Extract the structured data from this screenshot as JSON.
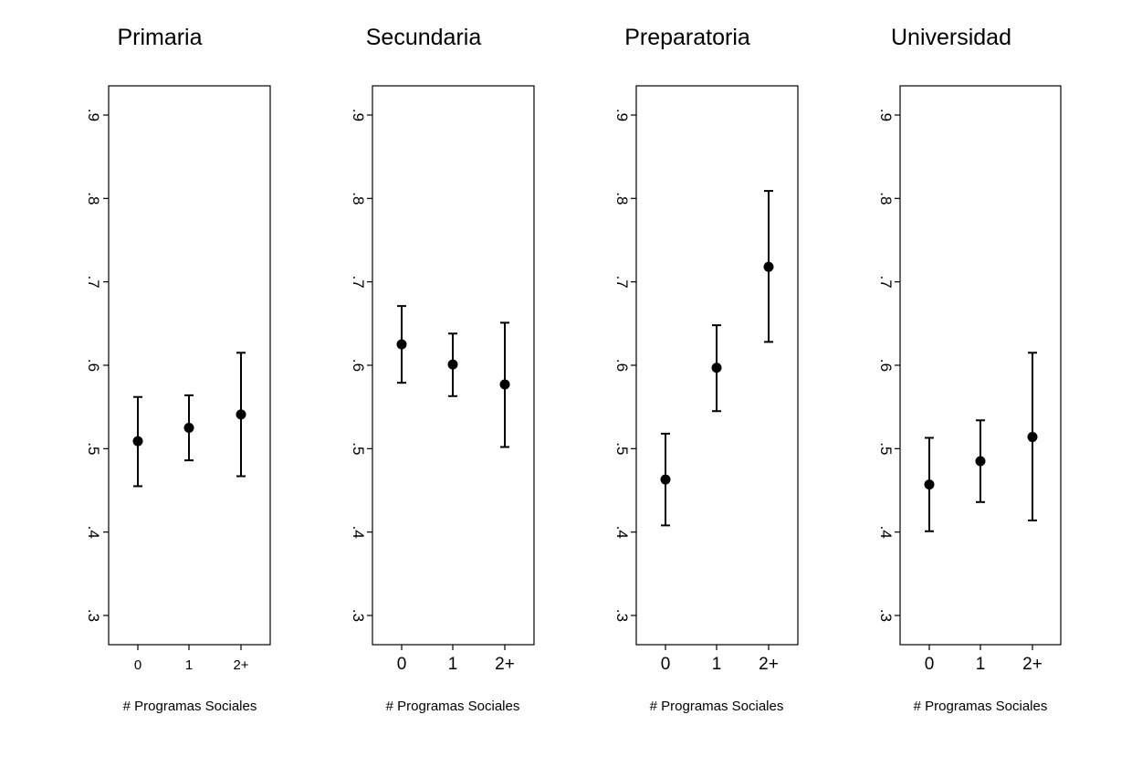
{
  "chart_data": [
    {
      "type": "scatter",
      "title": "Primaria",
      "xlabel": "# Programas Sociales",
      "ylabel": "",
      "categories": [
        "0",
        "1",
        "2+"
      ],
      "values": [
        0.509,
        0.525,
        0.541
      ],
      "ci_low": [
        0.455,
        0.486,
        0.467
      ],
      "ci_high": [
        0.562,
        0.564,
        0.615
      ],
      "ylim": [
        0.265,
        0.935
      ],
      "yticks": [
        0.3,
        0.4,
        0.5,
        0.6,
        0.7,
        0.8,
        0.9
      ],
      "ytick_labels": [
        ".3",
        ".4",
        ".5",
        ".6",
        ".7",
        ".8",
        ".9"
      ]
    },
    {
      "type": "scatter",
      "title": "Secundaria",
      "xlabel": "# Programas Sociales",
      "ylabel": "",
      "categories": [
        "0",
        "1",
        "2+"
      ],
      "values": [
        0.625,
        0.601,
        0.577
      ],
      "ci_low": [
        0.579,
        0.563,
        0.502
      ],
      "ci_high": [
        0.671,
        0.638,
        0.651
      ],
      "ylim": [
        0.265,
        0.935
      ],
      "yticks": [
        0.3,
        0.4,
        0.5,
        0.6,
        0.7,
        0.8,
        0.9
      ],
      "ytick_labels": [
        ".3",
        ".4",
        ".5",
        ".6",
        ".7",
        ".8",
        ".9"
      ]
    },
    {
      "type": "scatter",
      "title": "Preparatoria",
      "xlabel": "# Programas Sociales",
      "ylabel": "",
      "categories": [
        "0",
        "1",
        "2+"
      ],
      "values": [
        0.463,
        0.597,
        0.718
      ],
      "ci_low": [
        0.408,
        0.545,
        0.628
      ],
      "ci_high": [
        0.518,
        0.648,
        0.809
      ],
      "ylim": [
        0.265,
        0.935
      ],
      "yticks": [
        0.3,
        0.4,
        0.5,
        0.6,
        0.7,
        0.8,
        0.9
      ],
      "ytick_labels": [
        ".3",
        ".4",
        ".5",
        ".6",
        ".7",
        ".8",
        ".9"
      ]
    },
    {
      "type": "scatter",
      "title": "Universidad",
      "xlabel": "# Programas Sociales",
      "ylabel": "",
      "categories": [
        "0",
        "1",
        "2+"
      ],
      "values": [
        0.457,
        0.485,
        0.514
      ],
      "ci_low": [
        0.401,
        0.436,
        0.414
      ],
      "ci_high": [
        0.513,
        0.534,
        0.615
      ],
      "ylim": [
        0.265,
        0.935
      ],
      "yticks": [
        0.3,
        0.4,
        0.5,
        0.6,
        0.7,
        0.8,
        0.9
      ],
      "ytick_labels": [
        ".3",
        ".4",
        ".5",
        ".6",
        ".7",
        ".8",
        ".9"
      ]
    }
  ]
}
